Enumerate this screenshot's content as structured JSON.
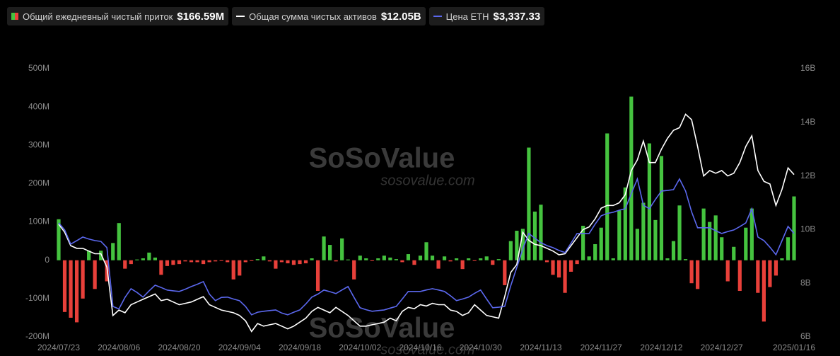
{
  "chart_data": {
    "type": "combo",
    "categories": [
      "2024/07/23",
      null,
      null,
      null,
      null,
      null,
      null,
      null,
      null,
      null,
      "2024/08/06",
      null,
      null,
      null,
      null,
      null,
      null,
      null,
      null,
      null,
      "2024/08/20",
      null,
      null,
      null,
      null,
      null,
      null,
      null,
      null,
      null,
      "2024/09/04",
      null,
      null,
      null,
      null,
      null,
      null,
      null,
      null,
      null,
      "2024/09/18",
      null,
      null,
      null,
      null,
      null,
      null,
      null,
      null,
      null,
      "2024/10/02",
      null,
      null,
      null,
      null,
      null,
      null,
      null,
      null,
      null,
      "2024/10/16",
      null,
      null,
      null,
      null,
      null,
      null,
      null,
      null,
      null,
      "2024/10/30",
      null,
      null,
      null,
      null,
      null,
      null,
      null,
      null,
      null,
      "2024/11/13",
      null,
      null,
      null,
      null,
      null,
      null,
      null,
      null,
      null,
      "2024/11/27",
      null,
      null,
      null,
      null,
      null,
      null,
      null,
      null,
      null,
      "2024/12/12",
      null,
      null,
      null,
      null,
      null,
      null,
      null,
      null,
      null,
      "2024/12/27",
      null,
      null,
      null,
      null,
      null,
      null,
      null,
      null,
      null,
      null,
      null,
      "2025/01/16"
    ],
    "series": [
      {
        "name": "Общий ежедневный чистый приток",
        "type": "bar",
        "legend_value": "$166.59M",
        "color_positive": "#45c33f",
        "color_negative": "#e8403a",
        "values": [
          107,
          -135,
          -150,
          -162,
          -100,
          25,
          -75,
          25,
          -55,
          45,
          97,
          -22,
          -10,
          2,
          5,
          20,
          7,
          -38,
          -15,
          -12,
          -10,
          -3,
          -5,
          -5,
          -10,
          -5,
          -3,
          -2,
          -5,
          -50,
          -40,
          -5,
          -2,
          3,
          10,
          -3,
          -22,
          -5,
          -8,
          -12,
          -10,
          -8,
          5,
          -80,
          62,
          40,
          -3,
          57,
          2,
          -50,
          12,
          5,
          -2,
          5,
          12,
          7,
          3,
          -5,
          16,
          -12,
          12,
          47,
          12,
          -22,
          10,
          -3,
          5,
          -23,
          5,
          -2,
          5,
          10,
          -12,
          3,
          -65,
          50,
          77,
          82,
          294,
          127,
          145,
          -5,
          -38,
          -45,
          -85,
          -30,
          -10,
          90,
          10,
          42,
          85,
          331,
          5,
          130,
          190,
          427,
          82,
          150,
          305,
          105,
          272,
          5,
          50,
          143,
          3,
          -60,
          -75,
          135,
          100,
          117,
          60,
          -55,
          35,
          -80,
          85,
          135,
          -85,
          -160,
          -70,
          -40,
          5,
          60,
          166.59
        ]
      },
      {
        "name": "Общая сумма чистых активов",
        "type": "line",
        "axis": "y2",
        "legend_value": "$12.05B",
        "color": "#ffffff",
        "values": [
          10.2,
          9.9,
          9.4,
          9.3,
          9.3,
          9.2,
          9.1,
          9.1,
          8.6,
          6.8,
          7.0,
          6.9,
          7.2,
          7.3,
          7.4,
          7.5,
          7.6,
          7.35,
          7.4,
          7.3,
          7.2,
          7.25,
          7.3,
          7.4,
          7.5,
          7.2,
          7.1,
          7.0,
          6.95,
          6.9,
          6.8,
          6.6,
          6.2,
          6.5,
          6.4,
          6.45,
          6.5,
          6.4,
          6.3,
          6.4,
          6.55,
          6.7,
          6.95,
          7.1,
          7.0,
          6.9,
          7.1,
          6.95,
          6.8,
          6.6,
          6.4,
          6.4,
          6.45,
          6.5,
          6.55,
          6.7,
          6.6,
          6.95,
          7.1,
          7.05,
          7.2,
          7.15,
          7.25,
          7.2,
          7.2,
          7.0,
          6.95,
          6.8,
          6.9,
          7.2,
          7.0,
          6.8,
          6.75,
          6.7,
          7.5,
          8.4,
          8.7,
          9.9,
          9.6,
          9.45,
          9.4,
          9.3,
          9.2,
          9.06,
          9.1,
          9.4,
          9.7,
          10.0,
          10.1,
          10.4,
          10.8,
          10.9,
          10.9,
          11.0,
          11.3,
          12.2,
          12.6,
          13.3,
          12.5,
          12.5,
          13.0,
          13.4,
          13.7,
          13.8,
          14.3,
          14.1,
          13.1,
          12.0,
          12.2,
          12.1,
          12.2,
          12.0,
          12.1,
          12.5,
          13.1,
          13.5,
          12.2,
          11.8,
          11.7,
          10.9,
          11.5,
          12.3,
          12.05
        ]
      },
      {
        "name": "Цена ETH",
        "type": "line",
        "axis": "y3",
        "legend_value": "$3,337.33",
        "color": "#5b68ee",
        "values": [
          3466,
          3380,
          3208,
          3250,
          3294,
          3270,
          3251,
          3240,
          3165,
          2450,
          2420,
          2560,
          2666,
          2620,
          2563,
          2640,
          2709,
          2680,
          2649,
          2640,
          2632,
          2660,
          2692,
          2720,
          2752,
          2600,
          2520,
          2560,
          2563,
          2540,
          2520,
          2450,
          2348,
          2380,
          2391,
          2400,
          2408,
          2370,
          2348,
          2380,
          2408,
          2480,
          2563,
          2600,
          2649,
          2630,
          2606,
          2650,
          2692,
          2560,
          2434,
          2410,
          2391,
          2400,
          2408,
          2430,
          2451,
          2540,
          2632,
          2632,
          2632,
          2650,
          2666,
          2650,
          2632,
          2580,
          2520,
          2540,
          2563,
          2610,
          2649,
          2540,
          2434,
          2440,
          2451,
          2700,
          2924,
          3150,
          3337,
          3280,
          3225,
          3190,
          3165,
          3130,
          3105,
          3220,
          3337,
          3337,
          3337,
          3450,
          3552,
          3580,
          3595,
          3620,
          3638,
          3820,
          4000,
          3681,
          3638,
          3750,
          3853,
          3860,
          3870,
          4000,
          3853,
          3600,
          3406,
          3406,
          3406,
          3370,
          3337,
          3360,
          3380,
          3420,
          3466,
          3638,
          3294,
          3251,
          3170,
          3079,
          3250,
          3423,
          3337.33
        ]
      }
    ],
    "ylim": [
      -200,
      500
    ],
    "yticks": [
      {
        "value": -200,
        "label": "-200M"
      },
      {
        "value": -100,
        "label": "-100M"
      },
      {
        "value": 0,
        "label": "0"
      },
      {
        "value": 100,
        "label": "100M"
      },
      {
        "value": 200,
        "label": "200M"
      },
      {
        "value": 300,
        "label": "300M"
      },
      {
        "value": 400,
        "label": "400M"
      },
      {
        "value": 500,
        "label": "500M"
      }
    ],
    "y2lim": [
      6,
      16
    ],
    "y2ticks": [
      {
        "value": 6,
        "label": "6B"
      },
      {
        "value": 8,
        "label": "8B"
      },
      {
        "value": 10,
        "label": "10B"
      },
      {
        "value": 12,
        "label": "12B"
      },
      {
        "value": 14,
        "label": "14B"
      },
      {
        "value": 16,
        "label": "16B"
      }
    ],
    "y3lim": [
      2080,
      5340
    ],
    "grid": false,
    "watermark": [
      "SoSoValue",
      "sosovalue.com"
    ]
  }
}
